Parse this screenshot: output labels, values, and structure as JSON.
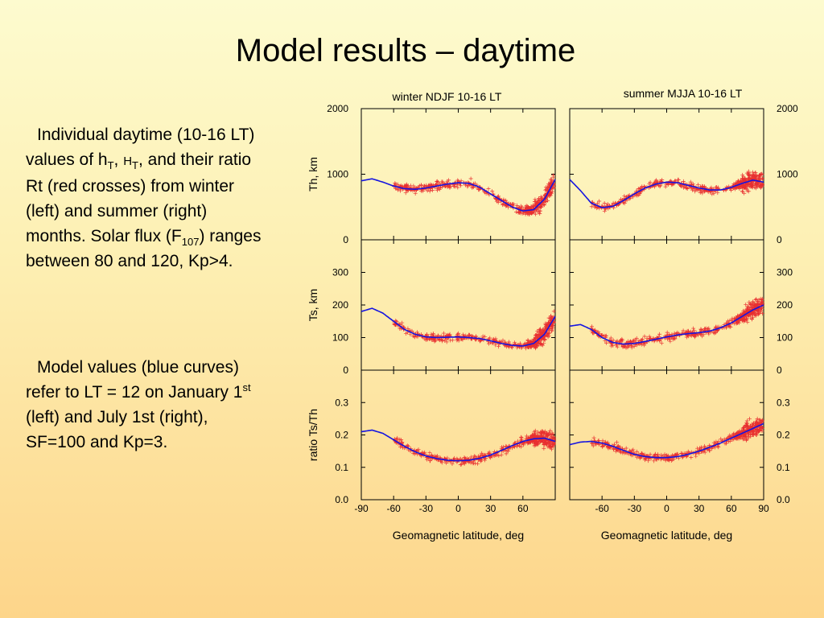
{
  "slide": {
    "title": "Model results – daytime"
  },
  "text": {
    "para1": {
      "a": "Individual daytime (10-16 LT) values of h",
      "sub1": "T",
      "b": ", ",
      "c": "H",
      "sub2": "T",
      "d": ", and their ratio Rt (red crosses) from winter (left) and summer (right) months. Solar flux (F",
      "sub3": "107",
      "e": ") ranges between 80 and 120, Kp>4."
    },
    "para2": {
      "a": "Model values (blue curves) refer to LT = 12 on January 1",
      "sup": "st",
      "b": " (left) and July 1st (right), SF=100 and Kp=3."
    }
  },
  "chart_data": [
    {
      "type": "scatter",
      "panel": "winter-th",
      "title": "winter NDJF  10-16 LT",
      "ylabel": "Th, km",
      "xlim": [
        -90,
        90
      ],
      "ylim": [
        0,
        2000
      ],
      "yticks": [
        0,
        1000,
        2000
      ],
      "model_x": [
        -90,
        -80,
        -70,
        -60,
        -50,
        -40,
        -30,
        -20,
        -10,
        0,
        10,
        20,
        30,
        40,
        50,
        60,
        70,
        80,
        90
      ],
      "model_y": [
        900,
        930,
        880,
        820,
        780,
        770,
        790,
        820,
        850,
        870,
        860,
        800,
        700,
        600,
        500,
        440,
        460,
        620,
        920
      ],
      "obs_range": [
        -60,
        89
      ],
      "obs_note": "red crosses, observed values"
    },
    {
      "type": "scatter",
      "panel": "summer-th",
      "title": "summer MJJA  10-16 LT",
      "ylabel": "",
      "xlim": [
        -90,
        90
      ],
      "ylim": [
        0,
        2000
      ],
      "yticks": [
        0,
        1000,
        2000
      ],
      "model_x": [
        -90,
        -80,
        -70,
        -60,
        -50,
        -40,
        -30,
        -20,
        -10,
        0,
        10,
        20,
        30,
        40,
        50,
        60,
        70,
        80,
        90
      ],
      "model_y": [
        920,
        750,
        560,
        490,
        510,
        600,
        700,
        790,
        850,
        880,
        870,
        830,
        790,
        760,
        760,
        800,
        860,
        910,
        880
      ],
      "obs_range": [
        -70,
        89
      ],
      "obs_note": "red crosses, observed values"
    },
    {
      "type": "scatter",
      "panel": "winter-ts",
      "title": "",
      "ylabel": "Ts, km",
      "xlim": [
        -90,
        90
      ],
      "ylim": [
        0,
        400
      ],
      "yticks": [
        0,
        100,
        200,
        300
      ],
      "model_x": [
        -90,
        -80,
        -70,
        -60,
        -50,
        -40,
        -30,
        -20,
        -10,
        0,
        10,
        20,
        30,
        40,
        50,
        60,
        70,
        80,
        90
      ],
      "model_y": [
        180,
        190,
        175,
        150,
        125,
        110,
        102,
        100,
        101,
        102,
        100,
        97,
        90,
        82,
        76,
        74,
        82,
        110,
        165
      ],
      "obs_range": [
        -60,
        89
      ],
      "obs_note": "red crosses, observed values"
    },
    {
      "type": "scatter",
      "panel": "summer-ts",
      "title": "",
      "ylabel": "",
      "xlim": [
        -90,
        90
      ],
      "ylim": [
        0,
        400
      ],
      "yticks": [
        0,
        100,
        200,
        300
      ],
      "model_x": [
        -90,
        -80,
        -70,
        -60,
        -50,
        -40,
        -30,
        -20,
        -10,
        0,
        10,
        20,
        30,
        40,
        50,
        60,
        70,
        80,
        90
      ],
      "model_y": [
        135,
        140,
        125,
        100,
        85,
        80,
        82,
        88,
        95,
        102,
        108,
        112,
        115,
        120,
        130,
        145,
        165,
        185,
        200
      ],
      "obs_range": [
        -70,
        89
      ],
      "obs_note": "red crosses, observed values"
    },
    {
      "type": "scatter",
      "panel": "winter-ratio",
      "title": "",
      "ylabel": "ratio Ts/Th",
      "xlabel": "Geomagnetic latitude, deg",
      "xlim": [
        -90,
        90
      ],
      "ylim": [
        0,
        0.4
      ],
      "yticks": [
        "0.0",
        "0.1",
        "0.2",
        "0.3"
      ],
      "xticks": [
        "-90",
        "-60",
        "-30",
        "0",
        "30",
        "60"
      ],
      "model_x": [
        -90,
        -80,
        -70,
        -60,
        -50,
        -40,
        -30,
        -20,
        -10,
        0,
        10,
        20,
        30,
        40,
        50,
        60,
        70,
        80,
        90
      ],
      "model_y": [
        0.21,
        0.215,
        0.205,
        0.185,
        0.165,
        0.148,
        0.135,
        0.127,
        0.122,
        0.12,
        0.122,
        0.128,
        0.138,
        0.152,
        0.167,
        0.18,
        0.188,
        0.19,
        0.18
      ],
      "obs_range": [
        -60,
        89
      ],
      "obs_note": "red crosses, observed values"
    },
    {
      "type": "scatter",
      "panel": "summer-ratio",
      "title": "",
      "ylabel": "",
      "xlabel": "Geomagnetic latitude, deg",
      "xlim": [
        -90,
        90
      ],
      "ylim": [
        0,
        0.4
      ],
      "yticks": [
        "0.0",
        "0.1",
        "0.2",
        "0.3"
      ],
      "xticks": [
        "-60",
        "-30",
        "0",
        "30",
        "60",
        "90"
      ],
      "model_x": [
        -90,
        -80,
        -70,
        -60,
        -50,
        -40,
        -30,
        -20,
        -10,
        0,
        10,
        20,
        30,
        40,
        50,
        60,
        70,
        80,
        90
      ],
      "model_y": [
        0.17,
        0.178,
        0.18,
        0.175,
        0.165,
        0.152,
        0.14,
        0.133,
        0.13,
        0.13,
        0.133,
        0.14,
        0.15,
        0.162,
        0.175,
        0.19,
        0.205,
        0.22,
        0.235
      ],
      "obs_range": [
        -70,
        89
      ],
      "obs_note": "red crosses, observed values"
    }
  ],
  "colors": {
    "model": "#1515e0",
    "observed": "#e83030",
    "axes": "#000000"
  }
}
